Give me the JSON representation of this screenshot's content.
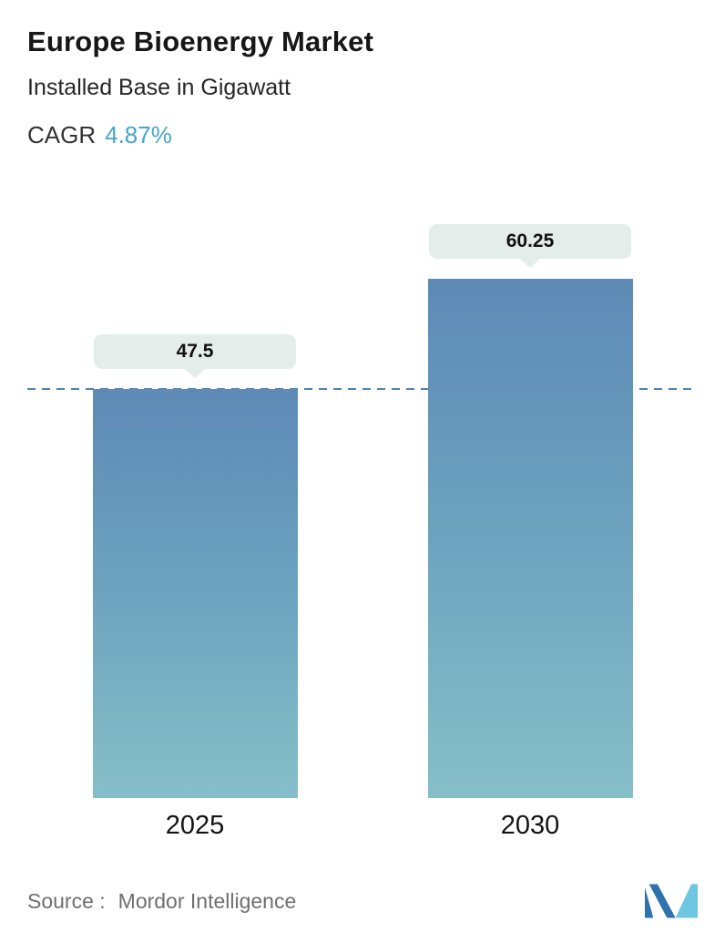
{
  "header": {
    "title": "Europe Bioenergy Market",
    "subtitle": "Installed Base in Gigawatt",
    "cagr_label": "CAGR",
    "cagr_value": "4.87%"
  },
  "chart_data": {
    "type": "bar",
    "title": "Europe Bioenergy Market",
    "subtitle": "Installed Base in Gigawatt",
    "cagr_percent": "4.87%",
    "categories": [
      "2025",
      "2030"
    ],
    "values": [
      47.5,
      60.25
    ],
    "unit": "Gigawatt",
    "xlabel": "",
    "ylabel": "Installed Base in Gigawatt",
    "ylim": [
      0,
      70
    ],
    "grid": "off",
    "legend": "none",
    "reference_line_value": 47.5,
    "colors": {
      "bar_gradient_top": "#5d8ab6",
      "bar_gradient_bottom": "#86bfc8",
      "callout_background": "#e5edeb",
      "dashed_reference_line": "#4e82af",
      "cagr_accent": "#45a5c9"
    }
  },
  "footer": {
    "source_label": "Source :",
    "source_value": "Mordor Intelligence"
  }
}
